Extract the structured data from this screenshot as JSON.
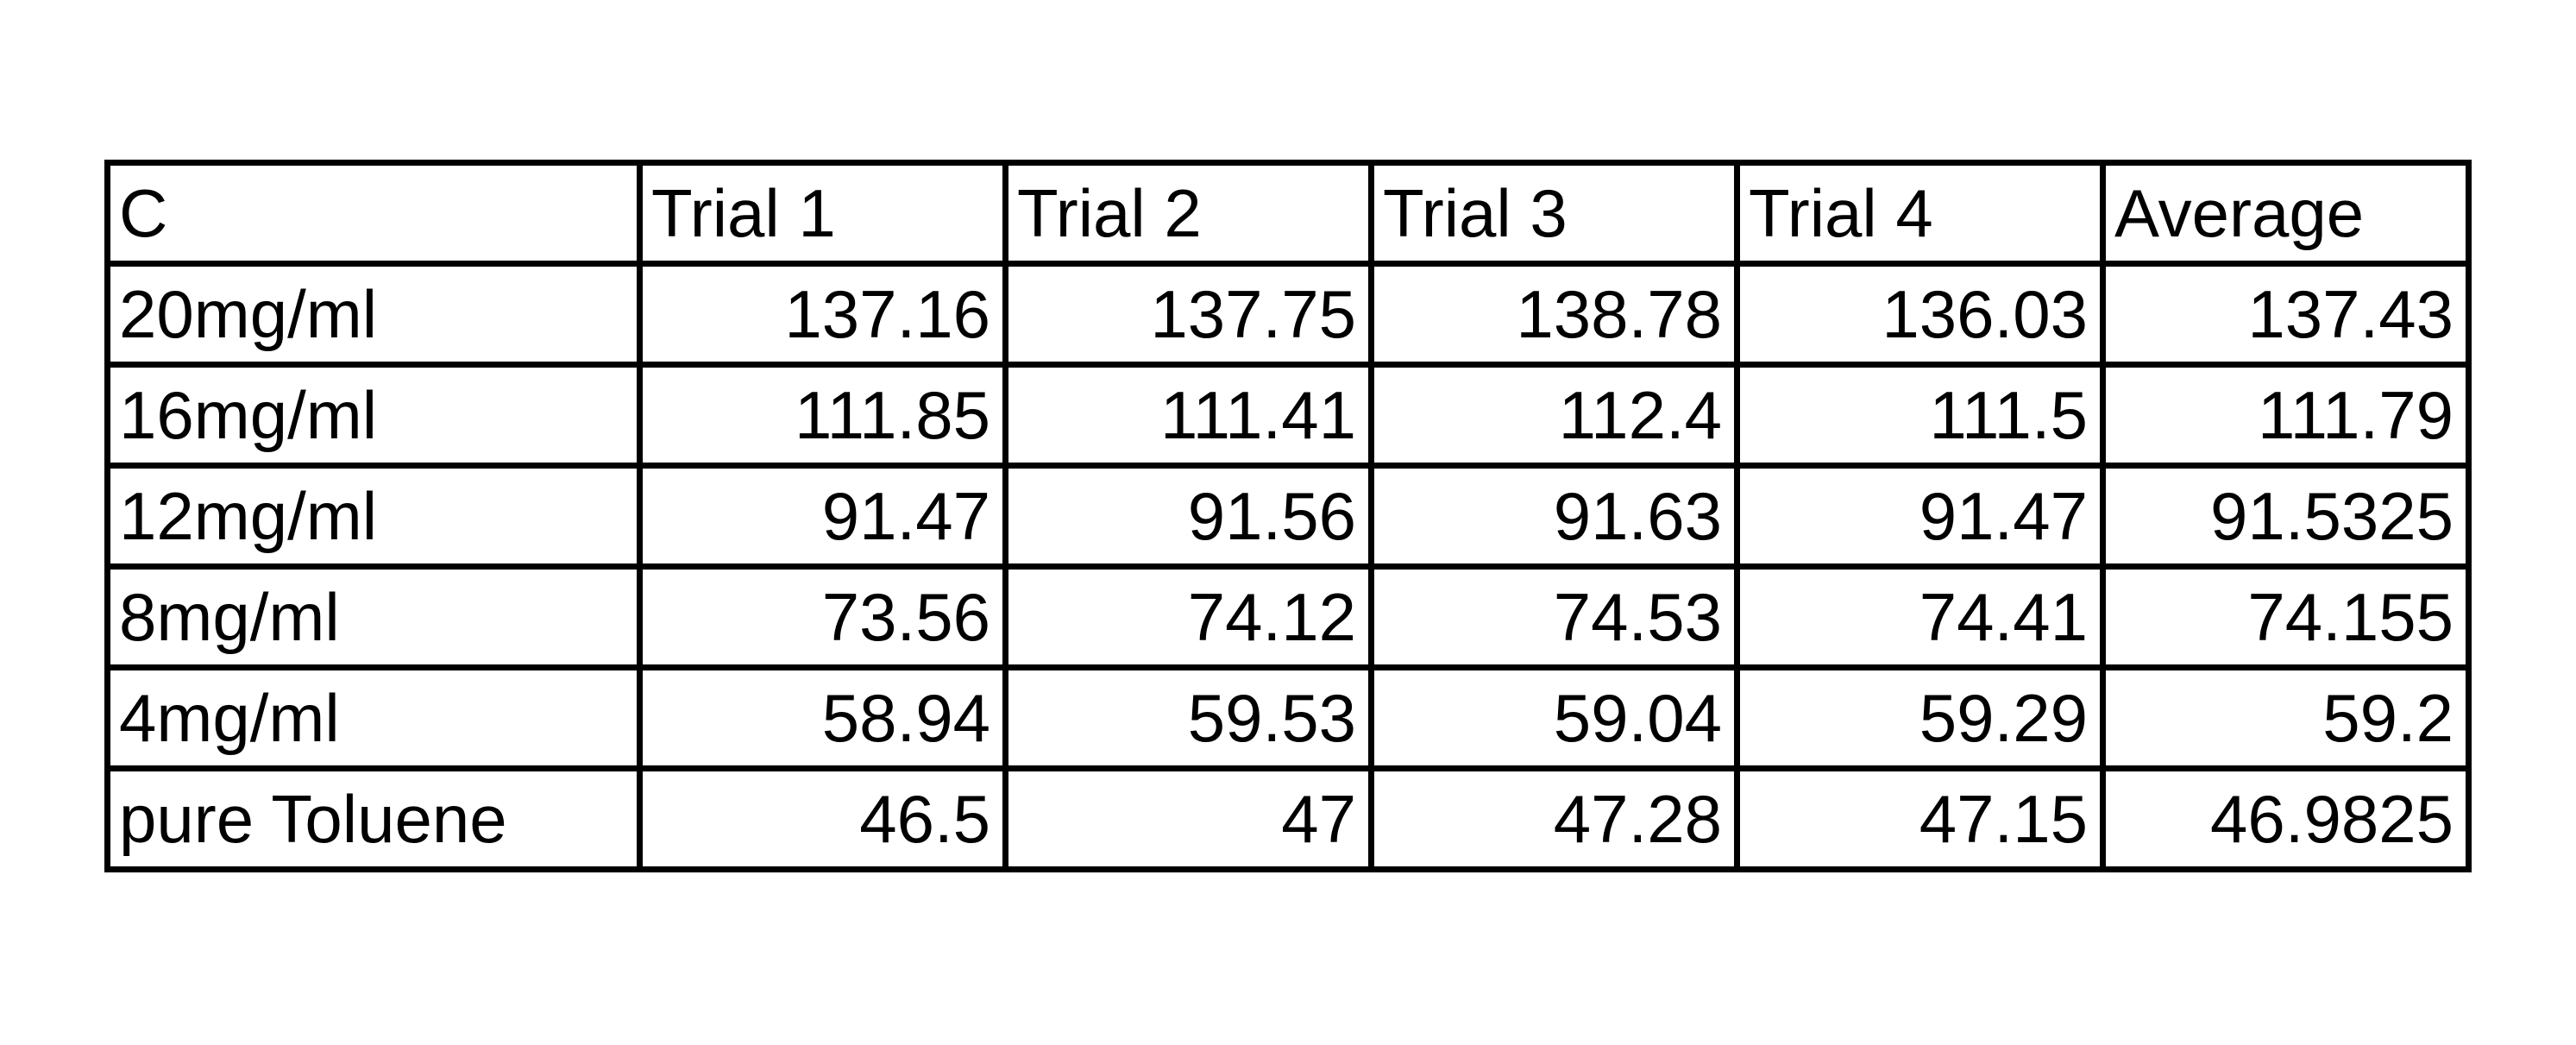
{
  "table": {
    "headers": [
      "C",
      "Trial 1",
      "Trial 2",
      "Trial 3",
      "Trial 4",
      "Average"
    ],
    "rows": [
      [
        "20mg/ml",
        "137.16",
        "137.75",
        "138.78",
        "136.03",
        "137.43"
      ],
      [
        "16mg/ml",
        "111.85",
        "111.41",
        "112.4",
        "111.5",
        "111.79"
      ],
      [
        "12mg/ml",
        "91.47",
        "91.56",
        "91.63",
        "91.47",
        "91.5325"
      ],
      [
        "8mg/ml",
        "73.56",
        "74.12",
        "74.53",
        "74.41",
        "74.155"
      ],
      [
        "4mg/ml",
        "58.94",
        "59.53",
        "59.04",
        "59.29",
        "59.2"
      ],
      [
        "pure Toluene",
        "46.5",
        "47",
        "47.28",
        "47.15",
        "46.9825"
      ]
    ]
  }
}
